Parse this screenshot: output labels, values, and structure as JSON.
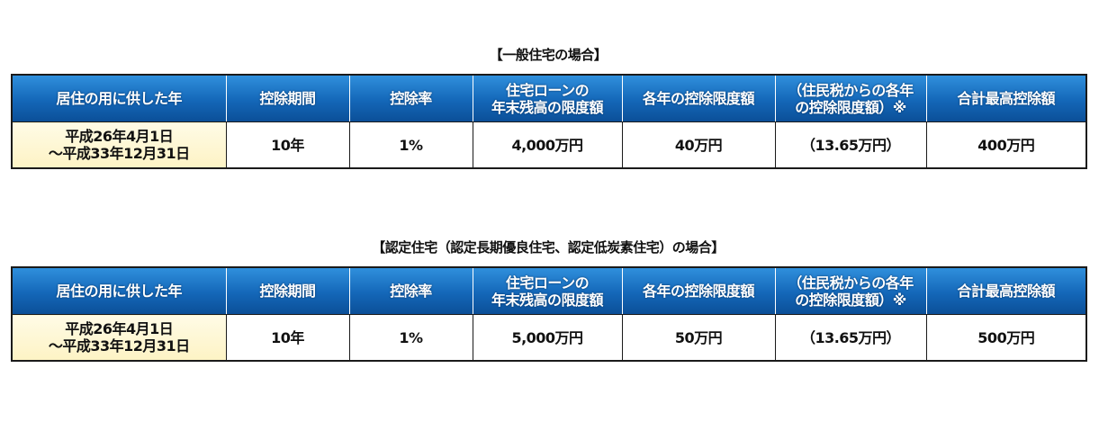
{
  "sections": [
    {
      "title": "【一般住宅の場合】",
      "headers": [
        {
          "line1": "居住の用に供した年",
          "line2": ""
        },
        {
          "line1": "控除期間",
          "line2": ""
        },
        {
          "line1": "控除率",
          "line2": ""
        },
        {
          "line1": "住宅ローンの",
          "line2": "年末残高の限度額"
        },
        {
          "line1": "各年の控除限度額",
          "line2": ""
        },
        {
          "line1": "（住民税からの各年",
          "line2": "の控除限度額）※"
        },
        {
          "line1": "合計最高控除額",
          "line2": ""
        }
      ],
      "row": {
        "year_line1": "平成26年4月1日",
        "year_line2": "～平成33年12月31日",
        "period": "10年",
        "rate": "1%",
        "loan_limit": "4,000万円",
        "annual_limit": "40万円",
        "resident_tax_limit": "（13.65万円）",
        "total_max": "400万円"
      }
    },
    {
      "title": "【認定住宅（認定長期優良住宅、認定低炭素住宅）の場合】",
      "headers": [
        {
          "line1": "居住の用に供した年",
          "line2": ""
        },
        {
          "line1": "控除期間",
          "line2": ""
        },
        {
          "line1": "控除率",
          "line2": ""
        },
        {
          "line1": "住宅ローンの",
          "line2": "年末残高の限度額"
        },
        {
          "line1": "各年の控除限度額",
          "line2": ""
        },
        {
          "line1": "（住民税からの各年",
          "line2": "の控除限度額）※"
        },
        {
          "line1": "合計最高控除額",
          "line2": ""
        }
      ],
      "row": {
        "year_line1": "平成26年4月1日",
        "year_line2": "～平成33年12月31日",
        "period": "10年",
        "rate": "1%",
        "loan_limit": "5,000万円",
        "annual_limit": "50万円",
        "resident_tax_limit": "（13.65万円）",
        "total_max": "500万円"
      }
    }
  ],
  "colors": {
    "header_blue": "#1467b8",
    "first_cell_cream": "#fdf3c4",
    "border": "#1a1a1a"
  }
}
